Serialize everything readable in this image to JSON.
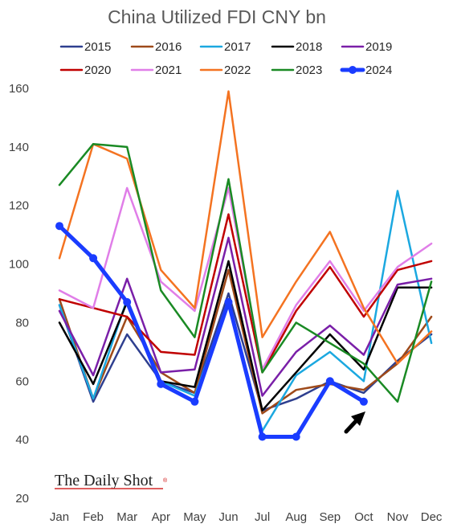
{
  "chart_data": {
    "type": "line",
    "title": "China Utilized FDI CNY bn",
    "xlabel": "",
    "ylabel": "",
    "categories": [
      "Jan",
      "Feb",
      "Mar",
      "Apr",
      "May",
      "Jun",
      "Jul",
      "Aug",
      "Sep",
      "Oct",
      "Nov",
      "Dec"
    ],
    "ylim": [
      20,
      160
    ],
    "yticks": [
      20,
      40,
      60,
      80,
      100,
      120,
      140,
      160
    ],
    "grid": false,
    "legend_position": "top",
    "series": [
      {
        "name": "2015",
        "color": "#2e3f8f",
        "width": 2.5,
        "values": [
          86,
          53,
          76,
          60,
          56,
          90,
          50,
          54,
          60,
          56,
          67,
          76
        ]
      },
      {
        "name": "2016",
        "color": "#9e4a1a",
        "width": 2.5,
        "values": [
          88,
          54,
          82,
          63,
          56,
          98,
          49,
          57,
          59,
          57,
          66,
          82
        ]
      },
      {
        "name": "2017",
        "color": "#1ba8e0",
        "width": 2.5,
        "values": [
          86,
          54,
          88,
          60,
          55,
          87,
          43,
          62,
          70,
          60,
          125,
          73
        ]
      },
      {
        "name": "2018",
        "color": "#000000",
        "width": 2.5,
        "values": [
          80,
          59,
          87,
          60,
          58,
          101,
          50,
          63,
          76,
          64,
          92,
          92
        ]
      },
      {
        "name": "2019",
        "color": "#7a1fa8",
        "width": 2.5,
        "values": [
          84,
          62,
          95,
          63,
          64,
          109,
          55,
          70,
          79,
          69,
          93,
          95
        ]
      },
      {
        "name": "2020",
        "color": "#c00000",
        "width": 2.5,
        "values": [
          88,
          85,
          82,
          70,
          69,
          117,
          63,
          84,
          99,
          82,
          98,
          101
        ]
      },
      {
        "name": "2021",
        "color": "#e07ee8",
        "width": 2.5,
        "values": [
          91,
          85,
          126,
          94,
          84,
          126,
          64,
          86,
          101,
          84,
          99,
          107
        ]
      },
      {
        "name": "2022",
        "color": "#f47321",
        "width": 2.5,
        "values": [
          102,
          141,
          136,
          98,
          85,
          159,
          75,
          94,
          111,
          85,
          66,
          77
        ]
      },
      {
        "name": "2023",
        "color": "#1a8a24",
        "width": 2.5,
        "values": [
          127,
          141,
          140,
          91,
          75,
          129,
          63,
          80,
          73,
          66,
          53,
          94
        ]
      },
      {
        "name": "2024",
        "color": "#1a3cff",
        "width": 5,
        "values": [
          113,
          102,
          87,
          59,
          53,
          87,
          41,
          41,
          60,
          53,
          null,
          null
        ]
      }
    ]
  },
  "brand": {
    "name": "The Daily Shot",
    "mark": "®"
  }
}
